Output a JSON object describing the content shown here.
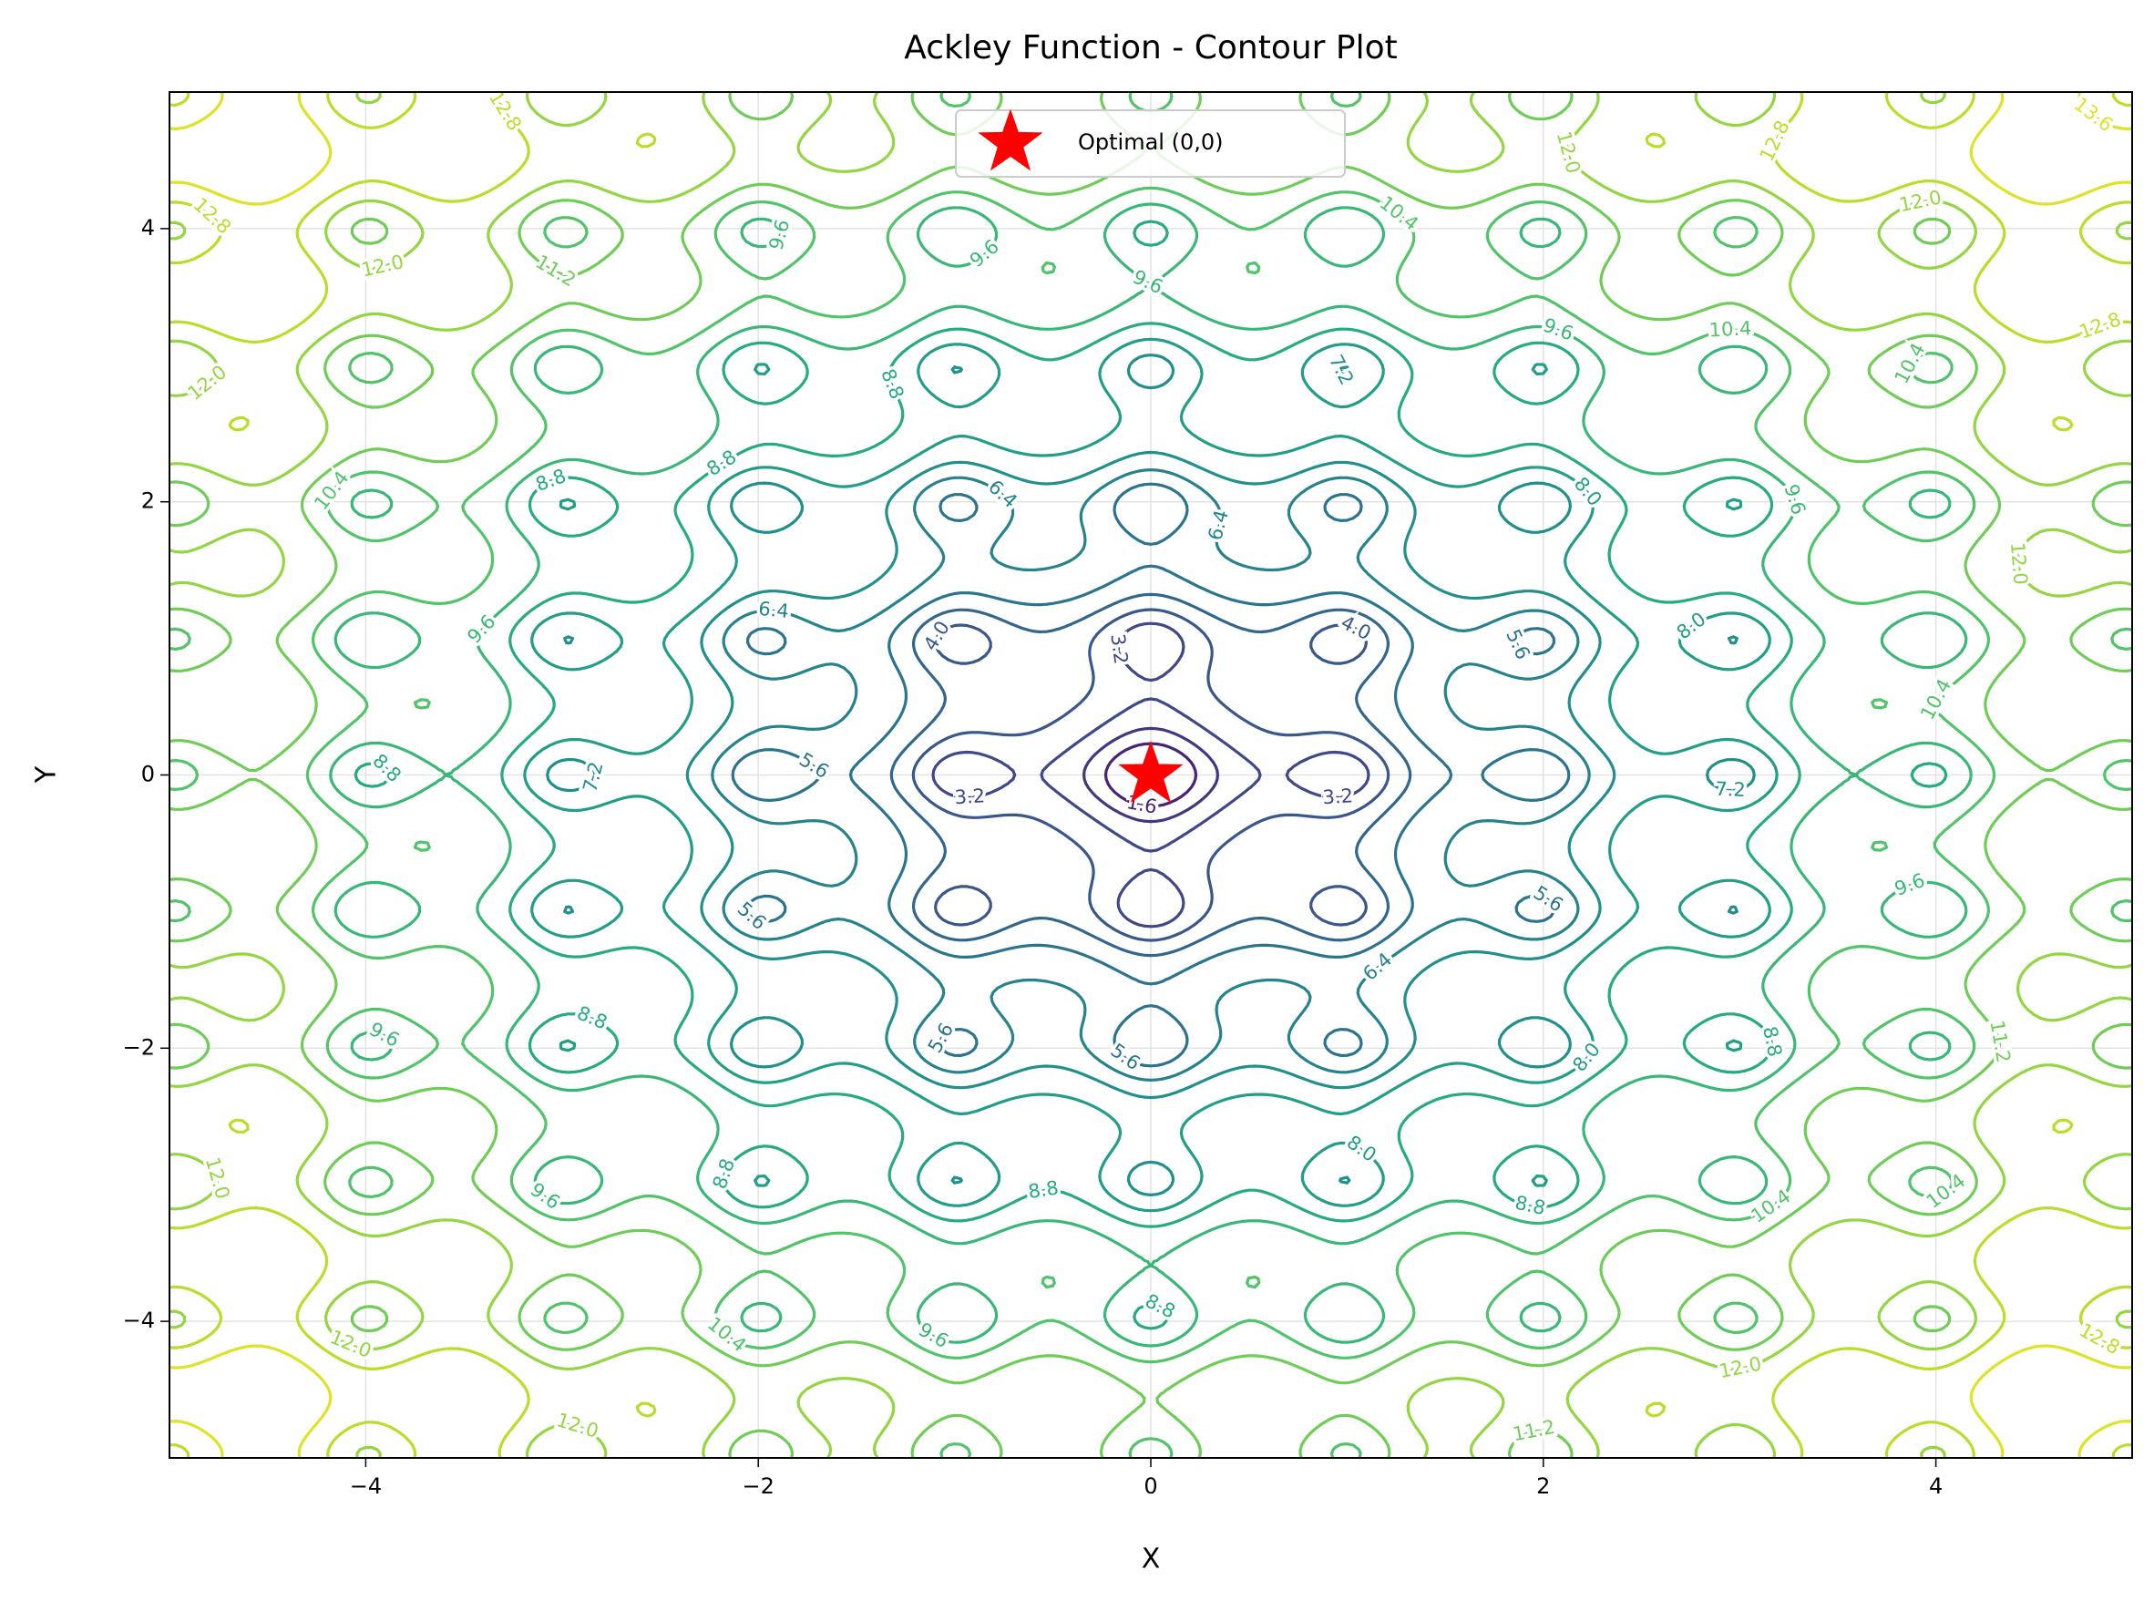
{
  "chart_data": {
    "type": "contour",
    "title": "Ackley Function - Contour Plot",
    "x_label": "X",
    "y_label": "Y",
    "xlim": [
      -5,
      5
    ],
    "ylim": [
      -5,
      5
    ],
    "xticks": [
      {
        "value": -4,
        "label": "−4"
      },
      {
        "value": -2,
        "label": "−2"
      },
      0,
      2,
      4
    ],
    "yticks": [
      {
        "value": -4,
        "label": "−4"
      },
      {
        "value": -2,
        "label": "−2"
      },
      0,
      2,
      4
    ],
    "grid": true,
    "colormap": "viridis",
    "levels": [
      1.6,
      2.4,
      3.2,
      {
        "value": 4,
        "label": "4.0"
      },
      4.8,
      5.6,
      6.4,
      7.2,
      {
        "value": 8,
        "label": "8.0"
      },
      8.8,
      9.6,
      10.4,
      11.2,
      {
        "value": 12,
        "label": "12.0"
      },
      12.8,
      13.6
    ],
    "markers": [
      {
        "name": "Optimal (0,0)",
        "x": 0,
        "y": 0,
        "color": "#ff0000",
        "marker": "star"
      }
    ],
    "legend": "upper center"
  }
}
